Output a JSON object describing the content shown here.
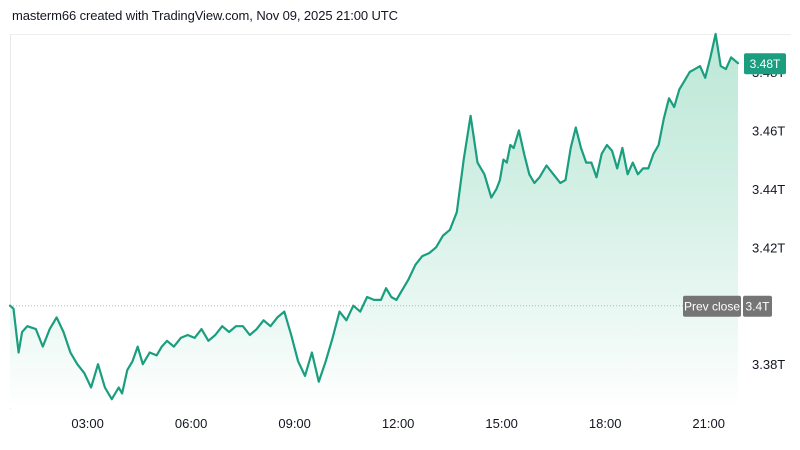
{
  "header": {
    "credit": "masterm66 created with TradingView.com, Nov 09, 2025 21:00 UTC"
  },
  "colors": {
    "line": "#1a9e7f",
    "fill_top": "#a7e0cb",
    "fill_bottom": "#ffffff",
    "last_tag": "#1a9e7f",
    "prev_tag": "#757575",
    "prev_line": "#b7b7b7"
  },
  "chart_data": {
    "type": "area",
    "x_ticks": [
      "03:00",
      "06:00",
      "09:00",
      "12:00",
      "15:00",
      "18:00",
      "21:00"
    ],
    "x_tick_hours": [
      3,
      6,
      9,
      12,
      15,
      18,
      21
    ],
    "xlim_hours": [
      0.75,
      21.85
    ],
    "y_ticks": [
      "3.38T",
      "3.42T",
      "3.44T",
      "3.46T",
      "3.48T"
    ],
    "y_tick_values": [
      3.38,
      3.42,
      3.44,
      3.46,
      3.48
    ],
    "ylim": [
      3.365,
      3.493
    ],
    "prev_close": {
      "label": "Prev close",
      "value_label": "3.4T",
      "value": 3.4
    },
    "last": {
      "value_label": "3.48T",
      "value": 3.483
    },
    "series": [
      {
        "x": [
          0.75,
          0.85,
          1.0,
          1.1,
          1.25,
          1.5,
          1.7,
          1.9,
          2.1,
          2.3,
          2.5,
          2.7,
          2.9,
          3.1,
          3.3,
          3.5,
          3.7,
          3.9,
          4.0,
          4.15,
          4.3,
          4.45,
          4.6,
          4.8,
          5.0,
          5.15,
          5.3,
          5.5,
          5.7,
          5.9,
          6.1,
          6.3,
          6.5,
          6.7,
          6.9,
          7.1,
          7.3,
          7.5,
          7.7,
          7.9,
          8.1,
          8.3,
          8.5,
          8.7,
          8.9,
          9.1,
          9.3,
          9.5,
          9.7,
          9.9,
          10.1,
          10.3,
          10.5,
          10.7,
          10.9,
          11.1,
          11.3,
          11.5,
          11.65,
          11.8,
          11.95,
          12.1,
          12.3,
          12.5,
          12.7,
          12.9,
          13.1,
          13.3,
          13.5,
          13.7,
          13.9,
          14.1,
          14.3,
          14.5,
          14.7,
          14.85,
          14.95,
          15.05,
          15.15,
          15.25,
          15.35,
          15.5,
          15.65,
          15.8,
          15.95,
          16.1,
          16.3,
          16.5,
          16.7,
          16.85,
          17.0,
          17.15,
          17.3,
          17.45,
          17.6,
          17.75,
          17.9,
          18.05,
          18.2,
          18.35,
          18.5,
          18.65,
          18.8,
          18.95,
          19.1,
          19.25,
          19.4,
          19.55,
          19.7,
          19.85,
          20.0,
          20.15,
          20.3,
          20.45,
          20.6,
          20.75,
          20.9,
          21.05,
          21.2,
          21.35,
          21.5,
          21.65,
          21.85
        ],
        "values": [
          3.4,
          3.399,
          3.384,
          3.391,
          3.393,
          3.392,
          3.386,
          3.392,
          3.396,
          3.391,
          3.384,
          3.38,
          3.377,
          3.372,
          3.38,
          3.372,
          3.368,
          3.372,
          3.37,
          3.378,
          3.381,
          3.386,
          3.38,
          3.384,
          3.383,
          3.386,
          3.388,
          3.386,
          3.389,
          3.39,
          3.389,
          3.392,
          3.388,
          3.39,
          3.393,
          3.391,
          3.393,
          3.393,
          3.39,
          3.392,
          3.395,
          3.393,
          3.396,
          3.398,
          3.39,
          3.381,
          3.376,
          3.384,
          3.374,
          3.381,
          3.389,
          3.398,
          3.395,
          3.4,
          3.398,
          3.403,
          3.402,
          3.402,
          3.406,
          3.403,
          3.402,
          3.405,
          3.409,
          3.414,
          3.417,
          3.418,
          3.42,
          3.424,
          3.426,
          3.432,
          3.45,
          3.465,
          3.449,
          3.445,
          3.437,
          3.44,
          3.443,
          3.45,
          3.449,
          3.455,
          3.454,
          3.46,
          3.452,
          3.445,
          3.442,
          3.444,
          3.448,
          3.445,
          3.442,
          3.443,
          3.454,
          3.461,
          3.454,
          3.449,
          3.449,
          3.444,
          3.452,
          3.455,
          3.453,
          3.447,
          3.454,
          3.445,
          3.449,
          3.445,
          3.447,
          3.447,
          3.452,
          3.455,
          3.464,
          3.471,
          3.468,
          3.474,
          3.477,
          3.48,
          3.481,
          3.482,
          3.478,
          3.485,
          3.493,
          3.482,
          3.481,
          3.485,
          3.483
        ]
      }
    ],
    "grid": false,
    "legend": "none",
    "title": "",
    "xlabel": "",
    "ylabel": ""
  }
}
